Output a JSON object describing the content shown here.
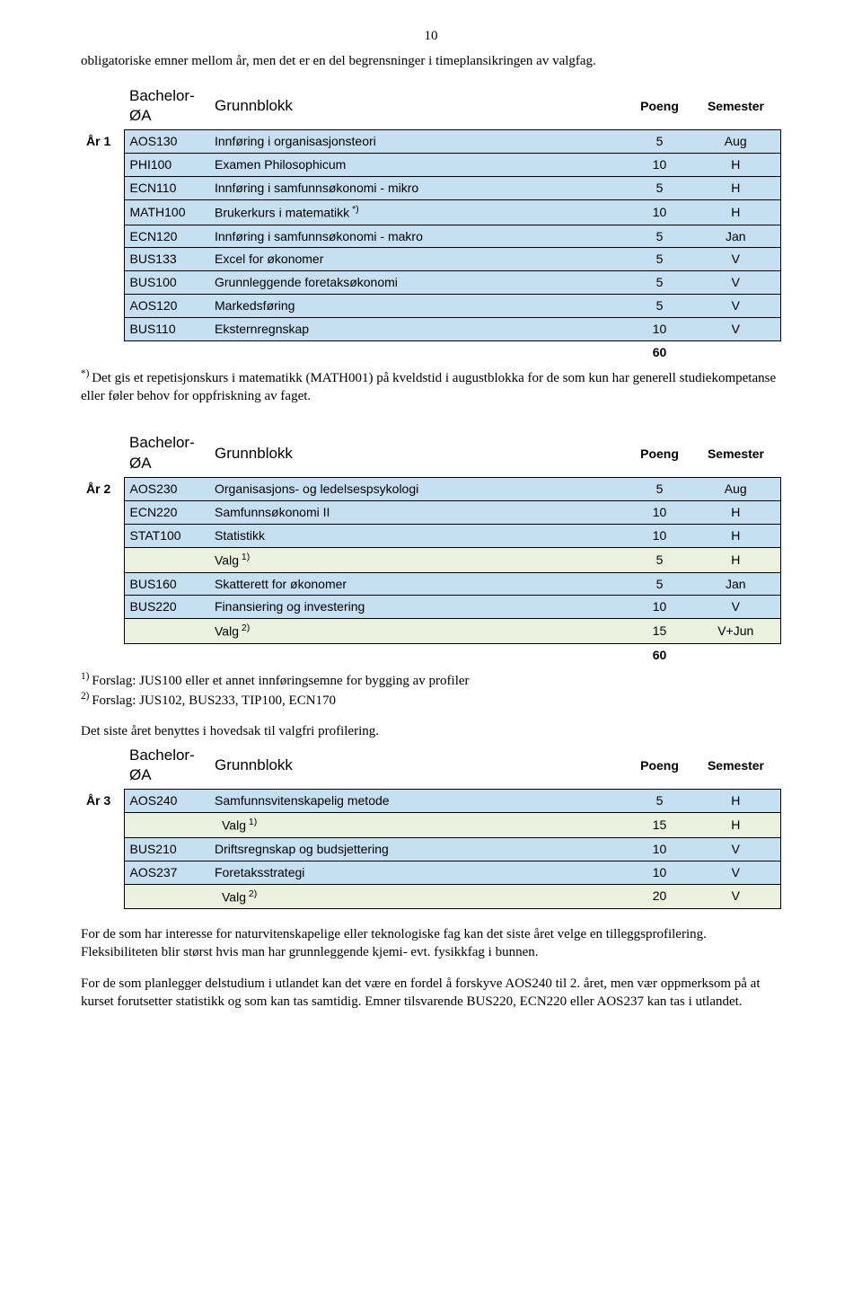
{
  "page_number": "10",
  "intro_paragraph": "obligatoriske emner mellom år, men det er en del begrensninger i timeplansikringen av valgfag.",
  "colors": {
    "header_bg": "#ffffff",
    "row_blue": "#c6dff1",
    "row_green": "#ebf1de",
    "border": "#000000",
    "text": "#000000"
  },
  "table_header_labels": {
    "program": "Bachelor-ØA",
    "block": "Grunnblokk",
    "points": "Poeng",
    "semester": "Semester"
  },
  "table1": {
    "year": "År 1",
    "rows": [
      {
        "code": "AOS130",
        "title": "Innføring i organisasjonsteori",
        "points": "5",
        "sem": "Aug"
      },
      {
        "code": "PHI100",
        "title": "Examen Philosophicum",
        "points": "10",
        "sem": "H"
      },
      {
        "code": "ECN110",
        "title": "Innføring i samfunnsøkonomi - mikro",
        "points": "5",
        "sem": "H"
      },
      {
        "code": "MATH100",
        "title": "Brukerkurs i matematikk",
        "title_sup": "*)",
        "points": "10",
        "sem": "H"
      },
      {
        "code": "ECN120",
        "title": "Innføring i samfunnsøkonomi - makro",
        "points": "5",
        "sem": "Jan"
      },
      {
        "code": "BUS133",
        "title": "Excel for økonomer",
        "points": "5",
        "sem": "V"
      },
      {
        "code": "BUS100",
        "title": "Grunnleggende foretaksøkonomi",
        "points": "5",
        "sem": "V"
      },
      {
        "code": "AOS120",
        "title": "Markedsføring",
        "points": "5",
        "sem": "V"
      },
      {
        "code": "BUS110",
        "title": "Eksternregnskap",
        "points": "10",
        "sem": "V"
      }
    ],
    "sum": "60",
    "note_prefix": "*)",
    "note": "Det gis et repetisjonskurs i matematikk (MATH001) på kveldstid i augustblokka for de som  kun har generell studiekompetanse eller føler behov for oppfriskning av faget."
  },
  "table2": {
    "year": "År 2",
    "rows": [
      {
        "code": "AOS230",
        "title": "Organisasjons- og ledelsespsykologi",
        "points": "5",
        "sem": "Aug",
        "bg": "blue"
      },
      {
        "code": "ECN220",
        "title": "Samfunnsøkonomi II",
        "points": "10",
        "sem": "H",
        "bg": "blue"
      },
      {
        "code": "STAT100",
        "title": "Statistikk",
        "points": "10",
        "sem": "H",
        "bg": "blue"
      },
      {
        "code": "",
        "title": "Valg",
        "title_sup": "1)",
        "points": "5",
        "sem": "H",
        "bg": "green"
      },
      {
        "code": "BUS160",
        "title": "Skatterett for økonomer",
        "points": "5",
        "sem": "Jan",
        "bg": "blue"
      },
      {
        "code": "BUS220",
        "title": "Finansiering og investering",
        "points": "10",
        "sem": "V",
        "bg": "blue"
      },
      {
        "code": "",
        "title": "Valg",
        "title_sup": "2)",
        "points": "15",
        "sem": "V+Jun",
        "bg": "green"
      }
    ],
    "sum": "60",
    "note1_prefix": "1)",
    "note1": "Forslag: JUS100 eller et annet innføringsemne for bygging av profiler",
    "note2_prefix": "2)",
    "note2": "Forslag: JUS102, BUS233, TIP100, ECN170"
  },
  "mid_paragraph": "Det siste året benyttes i hovedsak til valgfri profilering.",
  "table3": {
    "year": "År 3",
    "rows": [
      {
        "code": "AOS240",
        "title": "Samfunnsvitenskapelig metode",
        "points": "5",
        "sem": "H",
        "bg": "blue"
      },
      {
        "code": "",
        "title": "Valg",
        "title_sup": "1)",
        "points": "15",
        "sem": "H",
        "bg": "green",
        "indent": true
      },
      {
        "code": "BUS210",
        "title": "Driftsregnskap og budsjettering",
        "points": "10",
        "sem": "V",
        "bg": "blue"
      },
      {
        "code": "AOS237",
        "title": "Foretaksstrategi",
        "points": "10",
        "sem": "V",
        "bg": "blue"
      },
      {
        "code": "",
        "title": "Valg",
        "title_sup": "2)",
        "points": "20",
        "sem": "V",
        "bg": "green",
        "indent": true
      }
    ]
  },
  "end_paragraph1": "For de som har interesse for  naturvitenskapelige eller teknologiske fag kan det siste året velge en tilleggsprofilering.  Fleksibiliteten blir størst hvis man har grunnleggende kjemi- evt. fysikkfag i bunnen.",
  "end_paragraph2": "For de som planlegger delstudium i utlandet kan det være en fordel å forskyve AOS240 til 2. året, men vær oppmerksom på at kurset forutsetter statistikk og som kan tas samtidig. Emner tilsvarende BUS220, ECN220 eller AOS237  kan tas i utlandet."
}
